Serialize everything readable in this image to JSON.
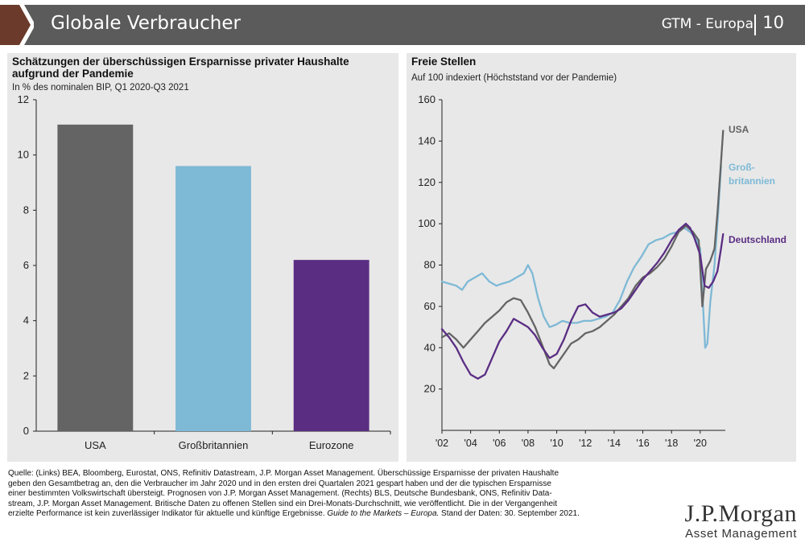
{
  "header": {
    "title": "Globale Verbraucher",
    "section": "GTM - Europa",
    "page_number": "10"
  },
  "left_chart": {
    "title": "Schätzungen der überschüssigen Ersparnisse privater Haushalte aufgrund der Pandemie",
    "subtitle": "In % des nominalen BIP, Q1 2020-Q3 2021"
  },
  "right_chart": {
    "title": "Freie Stellen",
    "subtitle": "Auf 100 indexiert (Höchststand vor der Pandemie)"
  },
  "chart_data": [
    {
      "type": "bar",
      "title": "Schätzungen der überschüssigen Ersparnisse privater Haushalte aufgrund der Pandemie",
      "subtitle": "In % des nominalen BIP, Q1 2020-Q3 2021",
      "categories": [
        "USA",
        "Großbritannien",
        "Eurozone"
      ],
      "values": [
        11.1,
        9.6,
        6.2
      ],
      "colors": [
        "#646464",
        "#7eb9d6",
        "#5a2d83"
      ],
      "ylim": [
        0,
        12
      ],
      "yticks": [
        0,
        2,
        4,
        6,
        8,
        10,
        12
      ],
      "grid": false
    },
    {
      "type": "line",
      "title": "Freie Stellen",
      "subtitle": "Auf 100 indexiert (Höchststand vor der Pandemie)",
      "ylim": [
        0,
        160
      ],
      "yticks": [
        20,
        40,
        60,
        80,
        100,
        120,
        140,
        160
      ],
      "ytick_labels": [
        "20",
        "40",
        "60",
        "80",
        "100",
        "120",
        "140",
        "160"
      ],
      "xlim": [
        2002,
        2021.75
      ],
      "xticks": [
        "'02",
        "'04",
        "'06",
        "'08",
        "'10",
        "'12",
        "'14",
        "'16",
        "'18",
        "'20"
      ],
      "xtick_values": [
        2002,
        2004,
        2006,
        2008,
        2010,
        2012,
        2014,
        2016,
        2018,
        2020
      ],
      "grid": false,
      "series": [
        {
          "name": "Großbritannien",
          "label": "Groß-\nbritannien",
          "color": "#7eb9d6",
          "x": [
            2002,
            2002.5,
            2003,
            2003.4,
            2003.8,
            2004.3,
            2004.8,
            2005.3,
            2005.8,
            2006.2,
            2006.7,
            2007.2,
            2007.7,
            2008.0,
            2008.3,
            2008.7,
            2009.1,
            2009.5,
            2009.9,
            2010.4,
            2010.9,
            2011.4,
            2011.9,
            2012.4,
            2012.9,
            2013.4,
            2013.9,
            2014.4,
            2014.9,
            2015.4,
            2015.9,
            2016.4,
            2016.9,
            2017.4,
            2017.9,
            2018.4,
            2018.9,
            2019.3,
            2019.7,
            2020.0,
            2020.2,
            2020.35,
            2020.5,
            2020.7,
            2021.0,
            2021.25,
            2021.45
          ],
          "y": [
            72,
            71,
            70,
            68,
            72,
            74,
            76,
            72,
            70,
            71,
            72,
            74,
            76,
            80,
            76,
            64,
            55,
            50,
            51,
            53,
            52,
            52,
            53,
            53,
            54,
            55,
            57,
            63,
            72,
            79,
            84,
            90,
            92,
            93,
            95,
            96,
            98,
            96,
            93,
            88,
            60,
            40,
            42,
            62,
            80,
            105,
            128
          ]
        },
        {
          "name": "USA",
          "label": "USA",
          "color": "#646464",
          "x": [
            2002,
            2002.5,
            2003,
            2003.5,
            2004,
            2004.5,
            2005,
            2005.5,
            2006,
            2006.5,
            2007,
            2007.5,
            2008,
            2008.5,
            2009,
            2009.5,
            2009.8,
            2010.2,
            2010.6,
            2011,
            2011.5,
            2012,
            2012.5,
            2013,
            2013.5,
            2014,
            2014.5,
            2015,
            2015.5,
            2016,
            2016.5,
            2017,
            2017.5,
            2018,
            2018.5,
            2019,
            2019.5,
            2019.9,
            2020.15,
            2020.4,
            2020.7,
            2021,
            2021.2,
            2021.45,
            2021.6
          ],
          "y": [
            45,
            47,
            44,
            40,
            44,
            48,
            52,
            55,
            58,
            62,
            64,
            63,
            57,
            50,
            41,
            32,
            30,
            34,
            38,
            42,
            44,
            47,
            48,
            50,
            53,
            56,
            60,
            64,
            70,
            74,
            76,
            79,
            83,
            89,
            96,
            99,
            96,
            92,
            60,
            78,
            82,
            88,
            105,
            130,
            145
          ]
        },
        {
          "name": "Deutschland",
          "label": "Deutschland",
          "color": "#5a2d83",
          "x": [
            2002,
            2002.5,
            2003,
            2003.5,
            2004,
            2004.5,
            2005,
            2005.5,
            2006,
            2006.5,
            2007,
            2007.5,
            2008,
            2008.5,
            2009,
            2009.5,
            2010,
            2010.5,
            2011,
            2011.5,
            2012,
            2012.5,
            2013,
            2013.5,
            2014,
            2014.5,
            2015,
            2015.5,
            2016,
            2016.5,
            2017,
            2017.5,
            2018,
            2018.5,
            2019,
            2019.3,
            2019.6,
            2020.0,
            2020.3,
            2020.6,
            2020.9,
            2021.2,
            2021.45,
            2021.6
          ],
          "y": [
            49,
            45,
            40,
            33,
            27,
            25,
            27,
            35,
            43,
            48,
            54,
            52,
            50,
            46,
            40,
            35,
            37,
            44,
            53,
            60,
            61,
            57,
            55,
            56,
            57,
            59,
            63,
            68,
            73,
            77,
            81,
            86,
            92,
            97,
            100,
            98,
            93,
            85,
            70,
            69,
            72,
            77,
            88,
            95
          ]
        }
      ]
    }
  ],
  "footer": {
    "line1": "Quelle: (Links) BEA, Bloomberg, Eurostat, ONS, Refinitiv Datastream, J.P. Morgan Asset Management. Überschüssige Ersparnisse der privaten Haushalte",
    "line2": "geben den Gesamtbetrag an, den die Verbraucher im Jahr 2020 und in den ersten drei Quartalen 2021 gespart haben und der die typischen Ersparnisse",
    "line3": "einer bestimmten Volkswirtschaft übersteigt. Prognosen von J.P. Morgan Asset Management. (Rechts) BLS, Deutsche Bundesbank, ONS, Refinitiv Data-",
    "line4": "stream, J.P. Morgan Asset Management. Britische Daten zu offenen Stellen sind ein Drei-Monats-Durchschnitt, wie veröffentlicht. Die in der Vergangenheit",
    "line5_a": "erzielte Performance ist kein zuverlässiger Indikator für aktuelle und künftige Ergebnisse. ",
    "line5_b": "Guide to the Markets – Europa.",
    "line5_c": " Stand der Daten: 30. September 2021."
  },
  "logo": {
    "line1": "J.P.Morgan",
    "line2": "Asset Management"
  }
}
